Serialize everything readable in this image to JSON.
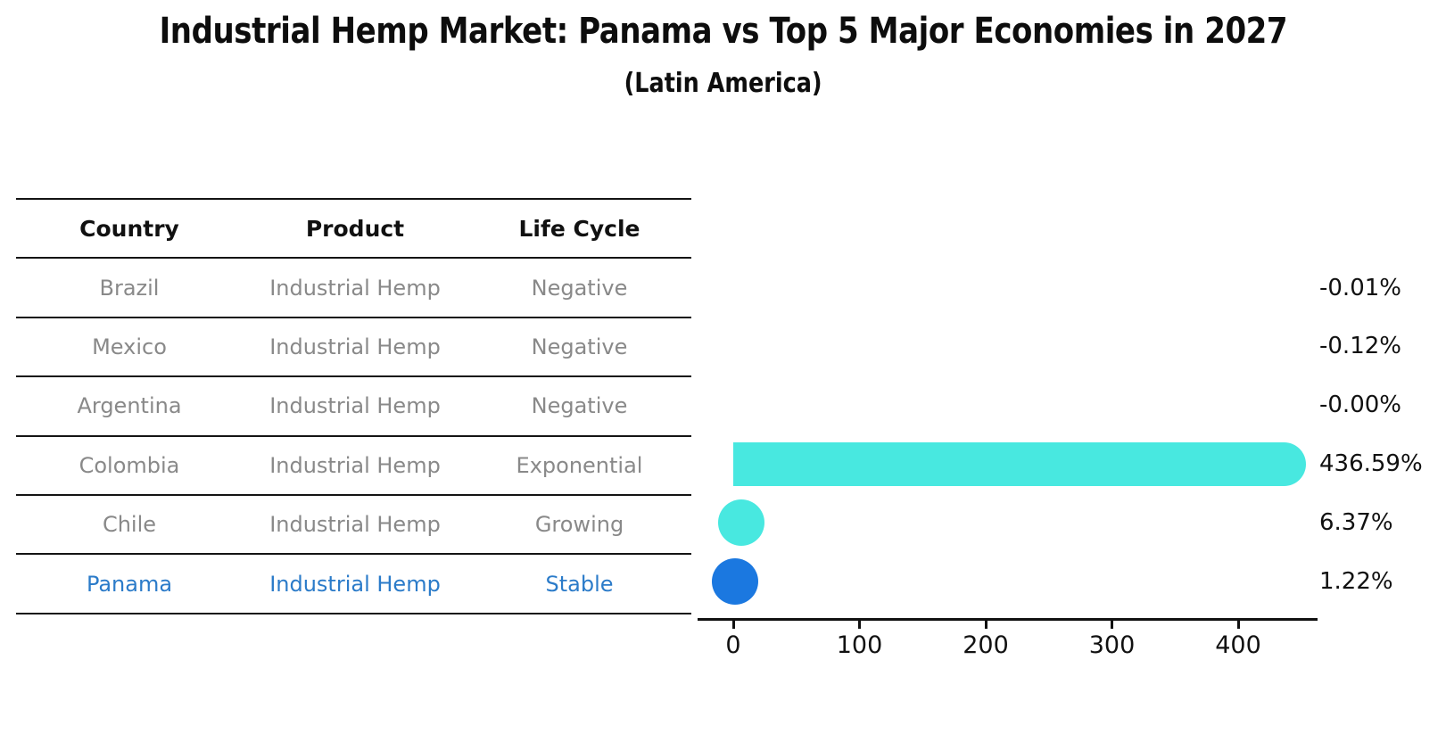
{
  "title": "Industrial Hemp Market: Panama vs Top 5 Major Economies in 2027",
  "subtitle": "(Latin America)",
  "table": {
    "headers": [
      "Country",
      "Product",
      "Life Cycle"
    ],
    "rows": [
      {
        "country": "Brazil",
        "product": "Industrial Hemp",
        "life_cycle": "Negative"
      },
      {
        "country": "Mexico",
        "product": "Industrial Hemp",
        "life_cycle": "Negative"
      },
      {
        "country": "Argentina",
        "product": "Industrial Hemp",
        "life_cycle": "Negative"
      },
      {
        "country": "Colombia",
        "product": "Industrial Hemp",
        "life_cycle": "Exponential"
      },
      {
        "country": "Chile",
        "product": "Industrial Hemp",
        "life_cycle": "Growing"
      },
      {
        "country": "Panama",
        "product": "Industrial Hemp",
        "life_cycle": "Stable"
      }
    ],
    "highlight_row": "Panama"
  },
  "chart_data": {
    "type": "bar",
    "orientation": "horizontal",
    "title": "Industrial Hemp Market: Panama vs Top 5 Major Economies in 2027",
    "subtitle": "(Latin America)",
    "categories": [
      "Brazil",
      "Mexico",
      "Argentina",
      "Colombia",
      "Chile",
      "Panama"
    ],
    "values": [
      -0.01,
      -0.12,
      -0.0,
      436.59,
      6.37,
      1.22
    ],
    "value_labels": [
      "-0.01%",
      "-0.12%",
      "-0.00%",
      "436.59%",
      "6.37%",
      "1.22%"
    ],
    "x_ticks": [
      0,
      100,
      200,
      300,
      400
    ],
    "xlim": [
      -28,
      463
    ],
    "grid": false,
    "legend": "none",
    "bar_colors": [
      "#48e8e0",
      "#48e8e0",
      "#48e8e0",
      "#48e8e0",
      "#48e8e0",
      "#1b78e0"
    ],
    "colors": {
      "bar_default": "#48e8e0",
      "bar_highlight": "#1b78e0",
      "table_text": "#898989",
      "highlight_text": "#2b7bc9",
      "axis": "#111111"
    }
  }
}
